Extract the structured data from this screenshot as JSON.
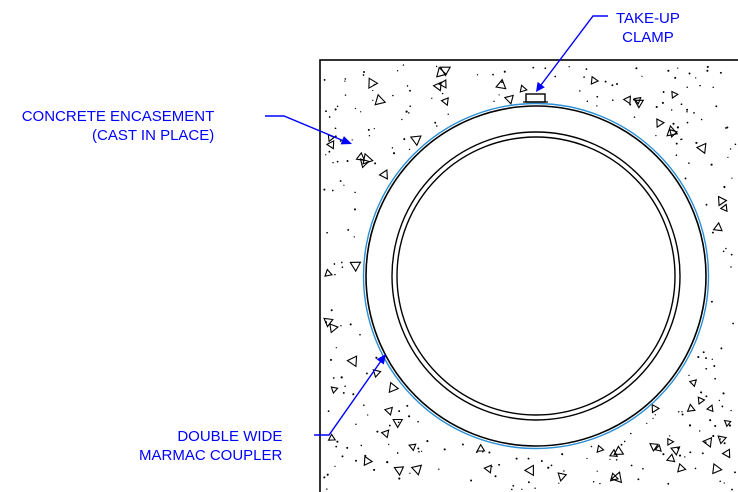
{
  "labels": {
    "take_up_clamp": [
      "TAKE-UP",
      "CLAMP"
    ],
    "concrete_encasement": [
      "CONCRETE ENCASEMENT",
      "(CAST IN PLACE)"
    ],
    "double_wide_coupler": [
      "DOUBLE WIDE",
      "MARMAC COUPLER"
    ]
  },
  "colors": {
    "leader": "#0000ff",
    "coupler_ring": "#2a8fd6",
    "outline": "#000000"
  },
  "icons": {
    "aggregate": "triangle-outline",
    "sand": "dot"
  }
}
